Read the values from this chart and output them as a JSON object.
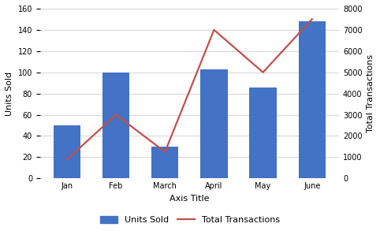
{
  "categories": [
    "Jan",
    "Feb",
    "March",
    "April",
    "May",
    "June"
  ],
  "bar_values": [
    50,
    100,
    30,
    103,
    86,
    148
  ],
  "line_values": [
    900,
    3000,
    1250,
    7000,
    5000,
    7500
  ],
  "bar_color": "#4472C4",
  "line_color": "#C0504D",
  "ylabel_left": "Units Sold",
  "ylabel_right": "Total Transactions",
  "xlabel": "Axis Title",
  "ylim_left": [
    0,
    160
  ],
  "ylim_right": [
    0,
    8000
  ],
  "yticks_left": [
    0,
    20,
    40,
    60,
    80,
    100,
    120,
    140,
    160
  ],
  "yticks_right": [
    0,
    1000,
    2000,
    3000,
    4000,
    5000,
    6000,
    7000,
    8000
  ],
  "legend_bar_label": "Units Sold",
  "legend_line_label": "Total Transactions",
  "background_color": "#ffffff",
  "grid_color": "#d9d9d9",
  "bar_width": 0.55,
  "tick_fontsize": 7,
  "label_fontsize": 8
}
